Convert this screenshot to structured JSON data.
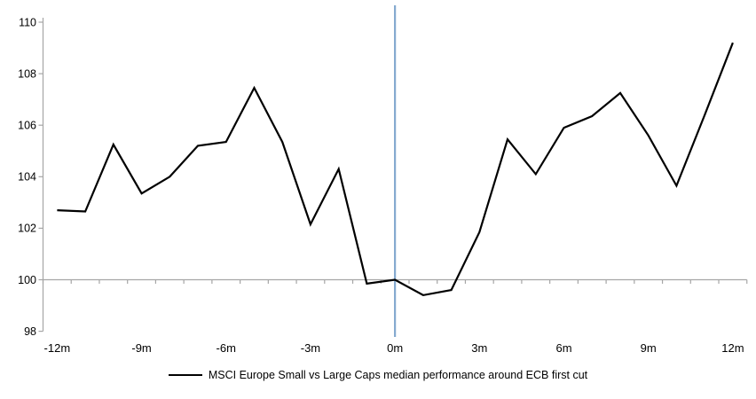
{
  "chart_data": {
    "type": "line",
    "title": "",
    "xlabel": "",
    "ylabel": "",
    "x": [
      -12,
      -11,
      -10,
      -9,
      -8,
      -7,
      -6,
      -5,
      -4,
      -3,
      -2,
      -1,
      0,
      1,
      2,
      3,
      4,
      5,
      6,
      7,
      8,
      9,
      10,
      11,
      12
    ],
    "series": [
      {
        "name": "MSCI Europe Small vs Large Caps median performance around ECB first cut",
        "color": "#000000",
        "values": [
          102.7,
          102.65,
          105.25,
          103.35,
          104.0,
          105.2,
          105.35,
          107.45,
          105.35,
          102.15,
          104.3,
          99.85,
          100.0,
          99.4,
          99.6,
          101.85,
          105.45,
          104.1,
          105.9,
          106.35,
          107.25,
          105.6,
          103.65,
          106.4,
          109.2
        ]
      }
    ],
    "x_tick_labels": [
      "-12m",
      "-9m",
      "-6m",
      "-3m",
      "0m",
      "3m",
      "6m",
      "9m",
      "12m"
    ],
    "x_tick_months": [
      -12,
      -9,
      -6,
      -3,
      0,
      3,
      6,
      9,
      12
    ],
    "y_ticks": [
      110,
      108,
      106,
      104,
      102,
      100,
      98
    ],
    "ylim": [
      98,
      110
    ],
    "xlim_months": [
      -12.5,
      12.5
    ],
    "baseline_value": 100,
    "event_line": {
      "at_month": 0,
      "color": "#84A9CF"
    },
    "axis_color": "#A6A6A6",
    "grid": "off",
    "legend_position": "bottom-center"
  }
}
